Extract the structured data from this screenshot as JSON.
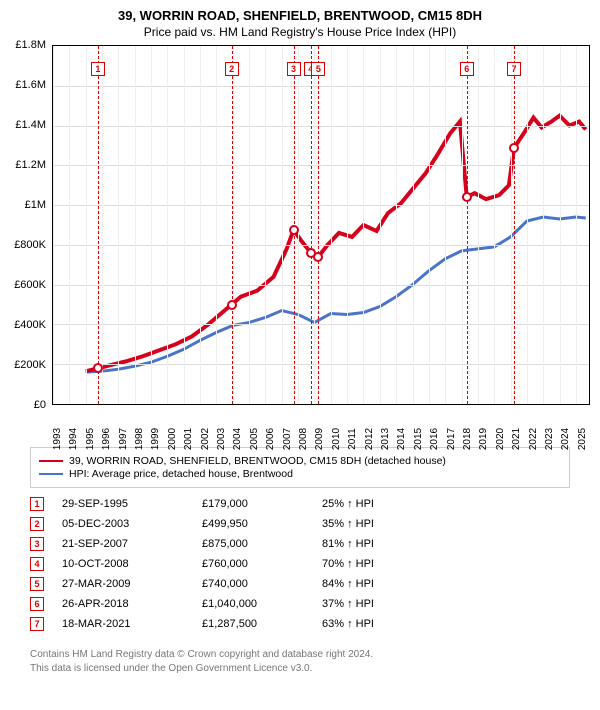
{
  "title_line1": "39, WORRIN ROAD, SHENFIELD, BRENTWOOD, CM15 8DH",
  "title_line2": "Price paid vs. HM Land Registry's House Price Index (HPI)",
  "chart": {
    "ylim": [
      0,
      1800000
    ],
    "yticks": [
      0,
      200000,
      400000,
      600000,
      800000,
      1000000,
      1200000,
      1400000,
      1600000,
      1800000
    ],
    "ytick_labels": [
      "£0",
      "£200K",
      "£400K",
      "£600K",
      "£800K",
      "£1M",
      "£1.2M",
      "£1.4M",
      "£1.6M",
      "£1.8M"
    ],
    "xlim": [
      1993,
      2025.8
    ],
    "xticks": [
      1993,
      1994,
      1995,
      1996,
      1997,
      1998,
      1999,
      2000,
      2001,
      2002,
      2003,
      2004,
      2005,
      2006,
      2007,
      2008,
      2009,
      2010,
      2011,
      2012,
      2013,
      2014,
      2015,
      2016,
      2017,
      2018,
      2019,
      2020,
      2021,
      2022,
      2023,
      2024,
      2025
    ],
    "event_years": [
      1995.75,
      2003.93,
      2007.72,
      2008.78,
      2009.24,
      2018.32,
      2021.21
    ],
    "markers": [
      {
        "x": 1995.75,
        "y": 179000
      },
      {
        "x": 2003.93,
        "y": 499950
      },
      {
        "x": 2007.72,
        "y": 875000
      },
      {
        "x": 2008.78,
        "y": 760000
      },
      {
        "x": 2009.24,
        "y": 740000
      },
      {
        "x": 2018.32,
        "y": 1040000
      },
      {
        "x": 2021.21,
        "y": 1287500
      }
    ],
    "red_color": "#d6001c",
    "blue_color": "#4a74c9",
    "grid_color": "#e4e4e4",
    "red_series": [
      {
        "x": 1995.0,
        "y": 165000
      },
      {
        "x": 1995.75,
        "y": 179000
      },
      {
        "x": 1996.5,
        "y": 195000
      },
      {
        "x": 1997.5,
        "y": 215000
      },
      {
        "x": 1998.5,
        "y": 240000
      },
      {
        "x": 1999.5,
        "y": 270000
      },
      {
        "x": 2000.5,
        "y": 300000
      },
      {
        "x": 2001.5,
        "y": 340000
      },
      {
        "x": 2002.5,
        "y": 400000
      },
      {
        "x": 2003.5,
        "y": 470000
      },
      {
        "x": 2003.93,
        "y": 499950
      },
      {
        "x": 2004.5,
        "y": 540000
      },
      {
        "x": 2005.5,
        "y": 570000
      },
      {
        "x": 2006.5,
        "y": 640000
      },
      {
        "x": 2007.3,
        "y": 780000
      },
      {
        "x": 2007.72,
        "y": 875000
      },
      {
        "x": 2008.2,
        "y": 820000
      },
      {
        "x": 2008.78,
        "y": 760000
      },
      {
        "x": 2009.24,
        "y": 740000
      },
      {
        "x": 2009.8,
        "y": 800000
      },
      {
        "x": 2010.5,
        "y": 860000
      },
      {
        "x": 2011.3,
        "y": 840000
      },
      {
        "x": 2012.0,
        "y": 900000
      },
      {
        "x": 2012.8,
        "y": 870000
      },
      {
        "x": 2013.5,
        "y": 960000
      },
      {
        "x": 2014.3,
        "y": 1010000
      },
      {
        "x": 2015.0,
        "y": 1080000
      },
      {
        "x": 2015.8,
        "y": 1160000
      },
      {
        "x": 2016.5,
        "y": 1250000
      },
      {
        "x": 2017.3,
        "y": 1360000
      },
      {
        "x": 2017.9,
        "y": 1420000
      },
      {
        "x": 2018.32,
        "y": 1040000
      },
      {
        "x": 2018.8,
        "y": 1060000
      },
      {
        "x": 2019.5,
        "y": 1030000
      },
      {
        "x": 2020.3,
        "y": 1050000
      },
      {
        "x": 2020.9,
        "y": 1100000
      },
      {
        "x": 2021.21,
        "y": 1287500
      },
      {
        "x": 2021.8,
        "y": 1360000
      },
      {
        "x": 2022.4,
        "y": 1440000
      },
      {
        "x": 2022.9,
        "y": 1390000
      },
      {
        "x": 2023.5,
        "y": 1420000
      },
      {
        "x": 2024.0,
        "y": 1450000
      },
      {
        "x": 2024.6,
        "y": 1400000
      },
      {
        "x": 2025.2,
        "y": 1420000
      },
      {
        "x": 2025.6,
        "y": 1380000
      }
    ],
    "blue_series": [
      {
        "x": 1995.0,
        "y": 160000
      },
      {
        "x": 1996.0,
        "y": 165000
      },
      {
        "x": 1997.0,
        "y": 175000
      },
      {
        "x": 1998.0,
        "y": 190000
      },
      {
        "x": 1999.0,
        "y": 210000
      },
      {
        "x": 2000.0,
        "y": 240000
      },
      {
        "x": 2001.0,
        "y": 275000
      },
      {
        "x": 2002.0,
        "y": 320000
      },
      {
        "x": 2003.0,
        "y": 360000
      },
      {
        "x": 2004.0,
        "y": 395000
      },
      {
        "x": 2005.0,
        "y": 410000
      },
      {
        "x": 2006.0,
        "y": 435000
      },
      {
        "x": 2007.0,
        "y": 470000
      },
      {
        "x": 2008.0,
        "y": 450000
      },
      {
        "x": 2009.0,
        "y": 410000
      },
      {
        "x": 2010.0,
        "y": 455000
      },
      {
        "x": 2011.0,
        "y": 450000
      },
      {
        "x": 2012.0,
        "y": 460000
      },
      {
        "x": 2013.0,
        "y": 490000
      },
      {
        "x": 2014.0,
        "y": 540000
      },
      {
        "x": 2015.0,
        "y": 600000
      },
      {
        "x": 2016.0,
        "y": 670000
      },
      {
        "x": 2017.0,
        "y": 730000
      },
      {
        "x": 2018.0,
        "y": 770000
      },
      {
        "x": 2019.0,
        "y": 780000
      },
      {
        "x": 2020.0,
        "y": 790000
      },
      {
        "x": 2021.0,
        "y": 840000
      },
      {
        "x": 2022.0,
        "y": 920000
      },
      {
        "x": 2023.0,
        "y": 940000
      },
      {
        "x": 2024.0,
        "y": 930000
      },
      {
        "x": 2025.0,
        "y": 940000
      },
      {
        "x": 2025.6,
        "y": 935000
      }
    ]
  },
  "legend": {
    "items": [
      {
        "color": "#d6001c",
        "label": "39, WORRIN ROAD, SHENFIELD, BRENTWOOD, CM15 8DH (detached house)"
      },
      {
        "color": "#4a74c9",
        "label": "HPI: Average price, detached house, Brentwood"
      }
    ]
  },
  "table": {
    "rows": [
      {
        "n": "1",
        "date": "29-SEP-1995",
        "price": "£179,000",
        "pct": "25% ↑ HPI"
      },
      {
        "n": "2",
        "date": "05-DEC-2003",
        "price": "£499,950",
        "pct": "35% ↑ HPI"
      },
      {
        "n": "3",
        "date": "21-SEP-2007",
        "price": "£875,000",
        "pct": "81% ↑ HPI"
      },
      {
        "n": "4",
        "date": "10-OCT-2008",
        "price": "£760,000",
        "pct": "70% ↑ HPI"
      },
      {
        "n": "5",
        "date": "27-MAR-2009",
        "price": "£740,000",
        "pct": "84% ↑ HPI"
      },
      {
        "n": "6",
        "date": "26-APR-2018",
        "price": "£1,040,000",
        "pct": "37% ↑ HPI"
      },
      {
        "n": "7",
        "date": "18-MAR-2021",
        "price": "£1,287,500",
        "pct": "63% ↑ HPI"
      }
    ]
  },
  "footer": {
    "line1": "Contains HM Land Registry data © Crown copyright and database right 2024.",
    "line2": "This data is licensed under the Open Government Licence v3.0."
  }
}
